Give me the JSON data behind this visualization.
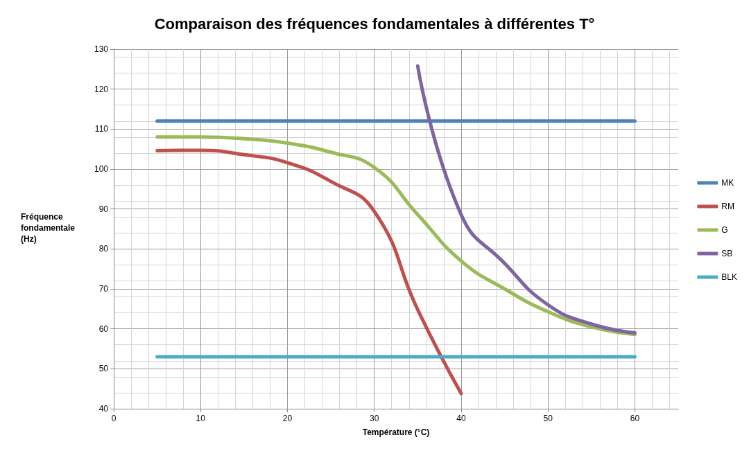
{
  "chart_data": {
    "type": "line",
    "title": "Comparaison des fréquences fondamentales à différentes T°",
    "xlabel": "Température (°C)",
    "ylabel": "Fréquence\nfondamentale\n(Hz)",
    "xlim": [
      0,
      65
    ],
    "xticks": [
      0,
      10,
      20,
      30,
      40,
      50,
      60
    ],
    "ylim": [
      40,
      130
    ],
    "yticks": [
      40,
      50,
      60,
      70,
      80,
      90,
      100,
      110,
      120,
      130
    ],
    "grid": true,
    "legend": "right",
    "marker": "none",
    "line_style": "solid",
    "series": [
      {
        "name": "MK",
        "color": "#4f81bd",
        "x": [
          5,
          60
        ],
        "values": [
          112,
          112
        ]
      },
      {
        "name": "RM",
        "color": "#c0504d",
        "x": [
          5,
          10,
          15,
          20,
          25,
          30,
          35,
          40
        ],
        "values": [
          104.6,
          104.7,
          103.6,
          101.6,
          96.9,
          89.4,
          64.8,
          43.8
        ]
      },
      {
        "name": "G",
        "color": "#9bbb59",
        "x": [
          5,
          10,
          15,
          20,
          25,
          30,
          35,
          40,
          45,
          50,
          55,
          60
        ],
        "values": [
          108,
          108,
          107.6,
          106.5,
          104.2,
          100.4,
          88.6,
          77,
          70,
          64.3,
          60.5,
          58.6
        ]
      },
      {
        "name": "SB",
        "color": "#8064a2",
        "x": [
          35,
          40,
          45,
          50,
          55,
          60
        ],
        "values": [
          125.8,
          88.6,
          76.4,
          66,
          61.2,
          59
        ]
      },
      {
        "name": "BLK",
        "color": "#4bacc6",
        "x": [
          5,
          60
        ],
        "values": [
          53,
          53
        ]
      }
    ]
  }
}
